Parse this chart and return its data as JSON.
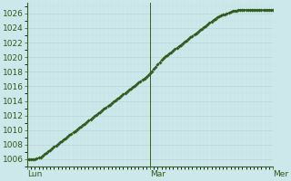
{
  "title": "",
  "xlabel": "",
  "ylabel": "",
  "background_color": "#cde8ea",
  "plot_bg_color": "#cde8ea",
  "grid_major_color": "#b8d4d6",
  "grid_minor_color": "#c8e0e2",
  "line_color": "#2d5a1b",
  "marker_color": "#2d5a1b",
  "ylim": [
    1005,
    1027.5
  ],
  "yticks": [
    1006,
    1008,
    1010,
    1012,
    1014,
    1016,
    1018,
    1020,
    1022,
    1024,
    1026
  ],
  "xtick_labels": [
    "Lun",
    "Mar",
    "Mer"
  ],
  "xtick_positions": [
    0,
    64,
    128
  ],
  "total_points": 129,
  "values": [
    1006.0,
    1006.0,
    1006.0,
    1006.0,
    1006.0,
    1006.1,
    1006.2,
    1006.3,
    1006.5,
    1006.7,
    1006.9,
    1007.1,
    1007.3,
    1007.5,
    1007.7,
    1007.9,
    1008.1,
    1008.3,
    1008.5,
    1008.7,
    1008.9,
    1009.1,
    1009.3,
    1009.5,
    1009.7,
    1009.9,
    1010.1,
    1010.3,
    1010.5,
    1010.7,
    1010.9,
    1011.1,
    1011.3,
    1011.5,
    1011.7,
    1011.9,
    1012.1,
    1012.3,
    1012.5,
    1012.7,
    1012.9,
    1013.1,
    1013.3,
    1013.5,
    1013.7,
    1013.9,
    1014.1,
    1014.3,
    1014.5,
    1014.7,
    1014.9,
    1015.1,
    1015.3,
    1015.5,
    1015.7,
    1015.9,
    1016.1,
    1016.3,
    1016.5,
    1016.7,
    1016.9,
    1017.1,
    1017.3,
    1017.5,
    1017.8,
    1018.1,
    1018.4,
    1018.7,
    1019.0,
    1019.3,
    1019.6,
    1019.9,
    1020.1,
    1020.3,
    1020.5,
    1020.7,
    1020.9,
    1021.1,
    1021.3,
    1021.5,
    1021.7,
    1021.9,
    1022.1,
    1022.3,
    1022.5,
    1022.7,
    1022.9,
    1023.1,
    1023.3,
    1023.5,
    1023.7,
    1023.9,
    1024.1,
    1024.3,
    1024.5,
    1024.7,
    1024.9,
    1025.1,
    1025.3,
    1025.5,
    1025.6,
    1025.7,
    1025.8,
    1025.9,
    1026.0,
    1026.1,
    1026.2,
    1026.3,
    1026.4,
    1026.4,
    1026.5,
    1026.5,
    1026.5,
    1026.5,
    1026.5,
    1026.5,
    1026.5,
    1026.5,
    1026.5,
    1026.5,
    1026.5,
    1026.5,
    1026.5,
    1026.5,
    1026.5,
    1026.5,
    1026.5,
    1026.5,
    1026.5
  ],
  "tick_fontsize": 6.5,
  "tick_color": "#2d5a1b",
  "axis_color": "#3a6020",
  "vline_color": "#3a6020",
  "spine_color": "#3a6020"
}
